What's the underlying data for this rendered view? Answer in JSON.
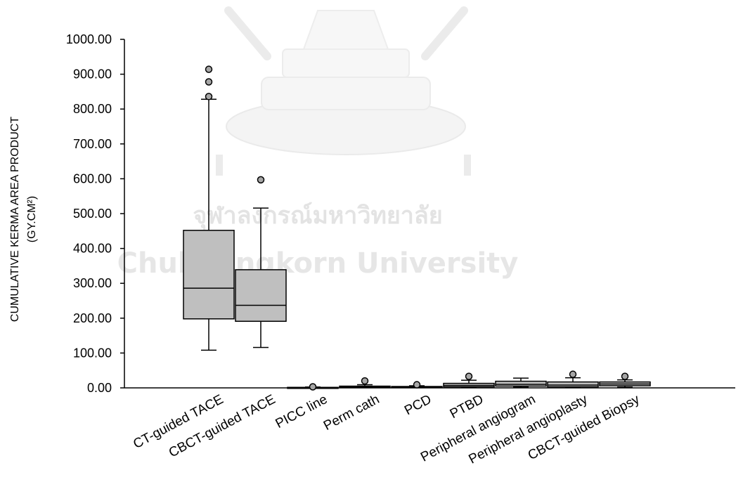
{
  "watermark": {
    "thai_text": "จุฬาลงกรณ์มหาวิทยาลัย",
    "english_text": "Chulalongkorn University",
    "color": "#e6e6e6"
  },
  "chart_data": {
    "type": "boxplot",
    "title": "",
    "xlabel": "",
    "ylabel_line1": "CUMULATIVE KERMA AREA PRODUCT",
    "ylabel_line2": "(GY.CM²)",
    "ylim": [
      0,
      1000
    ],
    "yticks": [
      0,
      100,
      200,
      300,
      400,
      500,
      600,
      700,
      800,
      900,
      1000
    ],
    "ytick_labels": [
      "0.00",
      "100.00",
      "200.00",
      "300.00",
      "400.00",
      "500.00",
      "600.00",
      "700.00",
      "800.00",
      "900.00",
      "1000.00"
    ],
    "grid": false,
    "legend": "none",
    "box_fill": "#bfbfbf",
    "box_stroke": "#000000",
    "outlier_fill": "#a6a6a6",
    "categories": [
      "CT-guided TACE",
      "CBCT-guided TACE",
      "PICC line",
      "Perm cath",
      "PCD",
      "PTBD",
      "Peripheral angiogram",
      "Peripheral angioplasty",
      "CBCT-guided Biopsy"
    ],
    "boxes": [
      {
        "min": 108,
        "q1": 198,
        "median": 286,
        "q3": 452,
        "max": 828,
        "outliers": [
          836,
          878,
          914
        ]
      },
      {
        "min": 116,
        "q1": 191,
        "median": 237,
        "q3": 339,
        "max": 516,
        "outliers": [
          597
        ]
      },
      {
        "min": 0.3,
        "q1": 0.6,
        "median": 1,
        "q3": 1.5,
        "max": 2.5,
        "outliers": [
          3
        ]
      },
      {
        "min": 0.5,
        "q1": 1.5,
        "median": 3,
        "q3": 5,
        "max": 9,
        "outliers": [
          20
        ]
      },
      {
        "min": 0.4,
        "q1": 1.2,
        "median": 2,
        "q3": 4,
        "max": 6,
        "outliers": [
          9
        ]
      },
      {
        "min": 1,
        "q1": 3,
        "median": 7,
        "q3": 13,
        "max": 22,
        "outliers": [
          33
        ]
      },
      {
        "min": 2,
        "q1": 5,
        "median": 10,
        "q3": 19,
        "max": 28,
        "outliers": []
      },
      {
        "min": 1,
        "q1": 3,
        "median": 8,
        "q3": 17,
        "max": 29,
        "outliers": [
          39
        ]
      },
      {
        "min": 2,
        "q1": 6,
        "median": 11,
        "q3": 17,
        "max": 23,
        "outliers": [
          33
        ]
      }
    ]
  }
}
